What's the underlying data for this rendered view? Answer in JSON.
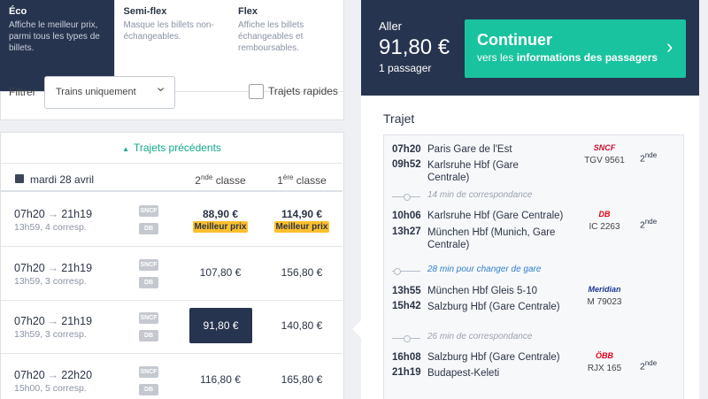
{
  "tabs": [
    {
      "title": "Éco",
      "desc": "Affiche le meilleur prix, parmi tous les types de billets."
    },
    {
      "title": "Semi-flex",
      "desc": "Masque les billets non-échangeables."
    },
    {
      "title": "Flex",
      "desc": "Affiche les billets échangeables et remboursables."
    }
  ],
  "filter": {
    "label": "Filtrer",
    "select": "Trains uniquement",
    "checkbox": "Trajets rapides"
  },
  "results": {
    "previous": "Trajets précédents",
    "date": "mardi 28 avril",
    "columns": [
      {
        "num": "2",
        "sup": "nde",
        "label": "classe"
      },
      {
        "num": "1",
        "sup": "ère",
        "label": "classe"
      }
    ],
    "rows": [
      {
        "dep": "07h20",
        "arr": "21h19",
        "info": "13h59, 4 corresp.",
        "operators": [
          "SNCF",
          "DB"
        ],
        "second": "88,90 €",
        "second_badge": "Meilleur prix",
        "first": "114,90 €",
        "first_badge": "Meilleur prix"
      },
      {
        "dep": "07h20",
        "arr": "21h19",
        "info": "13h59, 3 corresp.",
        "operators": [
          "SNCF",
          "DB"
        ],
        "second": "107,80 €",
        "first": "156,80 €"
      },
      {
        "dep": "07h20",
        "arr": "21h19",
        "info": "13h59, 3 corresp.",
        "operators": [
          "SNCF",
          "DB"
        ],
        "second": "91,80 €",
        "first": "140,80 €"
      },
      {
        "dep": "07h20",
        "arr": "22h20",
        "info": "15h00, 5 corresp.",
        "operators": [
          "SNCF",
          "DB"
        ],
        "second": "116,80 €",
        "first": "165,80 €"
      }
    ]
  },
  "summary": {
    "direction": "Aller",
    "price": "91,80 €",
    "passengers": "1 passager",
    "button": {
      "title": "Continuer",
      "sub_prefix": "vers les",
      "sub_bold": "informations des passagers"
    }
  },
  "journey": {
    "title": "Trajet",
    "items": [
      {
        "dep_time": "07h20",
        "dep_station": "Paris Gare de l'Est",
        "arr_time": "09h52",
        "arr_station": "Karlsruhe Hbf (Gare Centrale)",
        "operator": "SNCF",
        "train": "TGV 9561",
        "class_num": "2",
        "class_sup": "nde"
      },
      {
        "connection": "14 min de correspondance"
      },
      {
        "dep_time": "10h06",
        "dep_station": "Karlsruhe Hbf (Gare Centrale)",
        "arr_time": "13h27",
        "arr_station": "München Hbf (Munich, Gare Centrale)",
        "operator": "DB",
        "train": "IC 2263",
        "class_num": "2",
        "class_sup": "nde"
      },
      {
        "connection": "28 min pour changer de gare"
      },
      {
        "dep_time": "13h55",
        "dep_station": "München Hbf Gleis 5-10",
        "arr_time": "15h42",
        "arr_station": "Salzburg Hbf (Gare Centrale)",
        "operator": "Meridian",
        "train": "M 79023"
      },
      {
        "connection": "26 min de correspondance"
      },
      {
        "dep_time": "16h08",
        "dep_station": "Salzburg Hbf (Gare Centrale)",
        "arr_time": "21h19",
        "arr_station": "Budapest-Keleti",
        "operator": "ÖBB",
        "train": "RJX 165",
        "class_num": "2",
        "class_sup": "nde"
      }
    ]
  }
}
